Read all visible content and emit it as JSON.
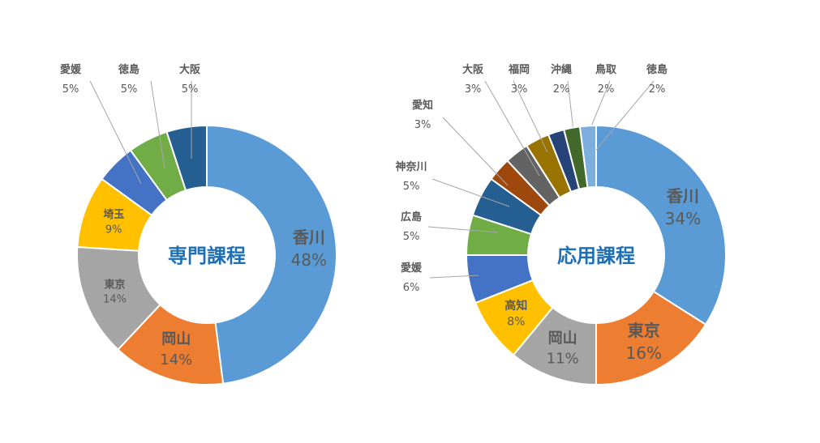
{
  "chart_data": [
    {
      "type": "pie",
      "title": "専門課程",
      "slices": [
        {
          "label": "香川",
          "value": 48,
          "value_text": "48%",
          "color": "#5b9bd5"
        },
        {
          "label": "岡山",
          "value": 14,
          "value_text": "14%",
          "color": "#ed7d31"
        },
        {
          "label": "東京",
          "value": 14,
          "value_text": "14%",
          "color": "#a5a5a5"
        },
        {
          "label": "埼玉",
          "value": 9,
          "value_text": "9%",
          "color": "#ffc000"
        },
        {
          "label": "愛媛",
          "value": 5,
          "value_text": "5%",
          "color": "#4472c4"
        },
        {
          "label": "徳島",
          "value": 5,
          "value_text": "5%",
          "color": "#70ad47"
        },
        {
          "label": "大阪",
          "value": 5,
          "value_text": "5%",
          "color": "#255e91"
        }
      ]
    },
    {
      "type": "pie",
      "title": "応用課程",
      "slices": [
        {
          "label": "香川",
          "value": 34,
          "value_text": "34%",
          "color": "#5b9bd5"
        },
        {
          "label": "東京",
          "value": 16,
          "value_text": "16%",
          "color": "#ed7d31"
        },
        {
          "label": "岡山",
          "value": 11,
          "value_text": "11%",
          "color": "#a5a5a5"
        },
        {
          "label": "高知",
          "value": 8,
          "value_text": "8%",
          "color": "#ffc000"
        },
        {
          "label": "愛媛",
          "value": 6,
          "value_text": "6%",
          "color": "#4472c4"
        },
        {
          "label": "広島",
          "value": 5,
          "value_text": "5%",
          "color": "#70ad47"
        },
        {
          "label": "神奈川",
          "value": 5,
          "value_text": "5%",
          "color": "#255e91"
        },
        {
          "label": "愛知",
          "value": 3,
          "value_text": "3%",
          "color": "#9e480e"
        },
        {
          "label": "大阪",
          "value": 3,
          "value_text": "3%",
          "color": "#636363"
        },
        {
          "label": "福岡",
          "value": 3,
          "value_text": "3%",
          "color": "#997300"
        },
        {
          "label": "沖縄",
          "value": 2,
          "value_text": "2%",
          "color": "#264478"
        },
        {
          "label": "鳥取",
          "value": 2,
          "value_text": "2%",
          "color": "#43682b"
        },
        {
          "label": "徳島",
          "value": 2,
          "value_text": "2%",
          "color": "#7cafdd"
        }
      ]
    }
  ]
}
